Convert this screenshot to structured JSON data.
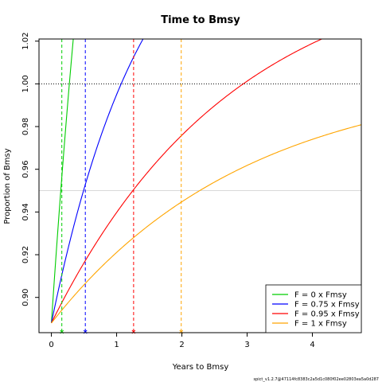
{
  "chart_data": {
    "type": "line",
    "title": "Time to Bmsy",
    "xlabel": "Years to Bmsy",
    "ylabel": "Proportion of Bmsy",
    "xlim": [
      -0.19,
      4.75
    ],
    "ylim": [
      0.8835,
      1.021
    ],
    "x_ticks": [
      0,
      1,
      2,
      3,
      4
    ],
    "y_ticks": [
      0.9,
      0.92,
      0.94,
      0.96,
      0.98,
      1.0,
      1.02
    ],
    "x_tick_labels": [
      "0",
      "1",
      "2",
      "3",
      "4"
    ],
    "y_tick_labels": [
      "0.90",
      "0.92",
      "0.94",
      "0.96",
      "0.98",
      "1.00",
      "1.02"
    ],
    "reference_lines": {
      "bmsy_level": 1.0,
      "threshold_level": 0.95
    },
    "legend": {
      "placement": "bottom-right"
    },
    "series": [
      {
        "name": "F = 0 x Fmsy",
        "color": "#00cd00",
        "y0": 0.888,
        "rate": 4.1,
        "t95": 0.16
      },
      {
        "name": "F = 0.75 x Fmsy",
        "color": "#0000ff",
        "y0": 0.888,
        "rate": 1.33,
        "t95": 0.52
      },
      {
        "name": "F = 0.95 x Fmsy",
        "color": "#ff0000",
        "y0": 0.888,
        "rate": 0.55,
        "t95": 1.26
      },
      {
        "name": "F = 1 x Fmsy",
        "color": "#ffa500",
        "y0": 0.888,
        "rate": 0.347,
        "t95": 1.99
      }
    ]
  },
  "footnote": "spict_v1.2.7@47114fc8383c2a5d1c080f02ee02803ea5a0d287"
}
